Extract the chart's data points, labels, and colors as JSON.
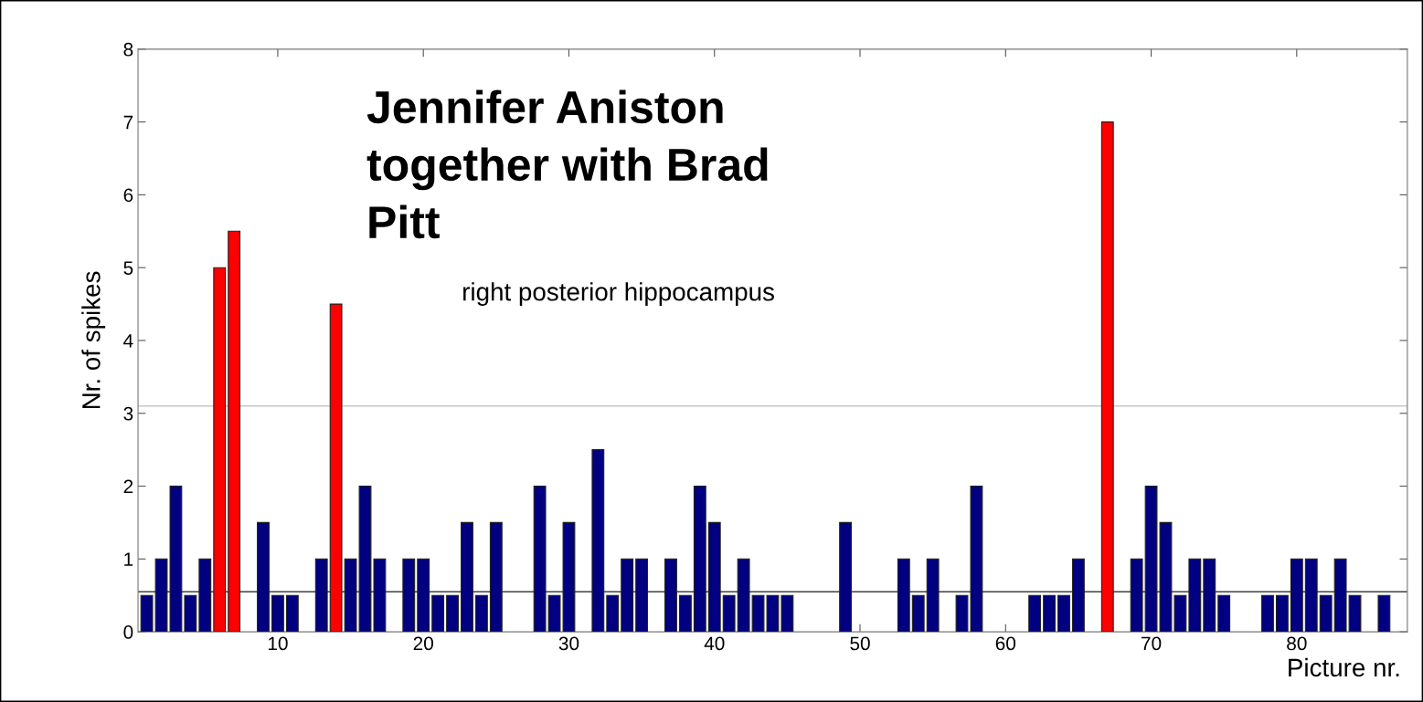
{
  "chart_data": {
    "type": "bar",
    "annotations": [
      "Jennifer Aniston\ntogether with Brad\nPitt",
      "right posterior hippocampus"
    ],
    "xlabel": "Picture nr.",
    "ylabel": "Nr. of spikes",
    "series": [
      {
        "color": "#000080",
        "x": [
          1,
          2,
          3,
          4,
          5,
          9,
          10,
          11,
          13,
          15,
          16,
          17,
          19,
          20,
          21,
          22,
          23,
          24,
          25,
          28,
          29,
          30,
          32,
          33,
          34,
          35,
          37,
          38,
          39,
          40,
          41,
          42,
          43,
          44,
          45,
          49,
          53,
          54,
          55,
          57,
          58,
          62,
          63,
          64,
          65,
          69,
          70,
          71,
          72,
          73,
          74,
          75,
          78,
          79,
          80,
          81,
          82,
          83,
          84,
          86
        ],
        "values": [
          0.5,
          1,
          2,
          0.5,
          1,
          1.5,
          0.5,
          0.5,
          1,
          1,
          2,
          1,
          1,
          1,
          0.5,
          0.5,
          1.5,
          0.5,
          1.5,
          2,
          0.5,
          1.5,
          2.5,
          0.5,
          1,
          1,
          1,
          0.5,
          2,
          1.5,
          0.5,
          1,
          0.5,
          0.5,
          0.5,
          1.5,
          1,
          0.5,
          1,
          0.5,
          2,
          0.5,
          0.5,
          0.5,
          1,
          1,
          2,
          1.5,
          0.5,
          1,
          1,
          0.5,
          0.5,
          0.5,
          1,
          1,
          0.5,
          1,
          0.5,
          0.5
        ]
      },
      {
        "color": "#ff0000",
        "x": [
          6,
          7,
          14,
          67
        ],
        "values": [
          5,
          5.5,
          4.5,
          7
        ]
      }
    ],
    "xlim": [
      0.4,
      87.6
    ],
    "ylim": [
      0,
      8
    ],
    "xticks": [
      10,
      20,
      30,
      40,
      50,
      60,
      70,
      80
    ],
    "yticks": [
      0,
      1,
      2,
      3,
      4,
      5,
      6,
      7,
      8
    ],
    "ref_lines": [
      {
        "axis": "y",
        "value": 0.55,
        "color": "#404040"
      },
      {
        "axis": "y",
        "value": 3.1,
        "color": "#c8c8c8"
      }
    ]
  }
}
